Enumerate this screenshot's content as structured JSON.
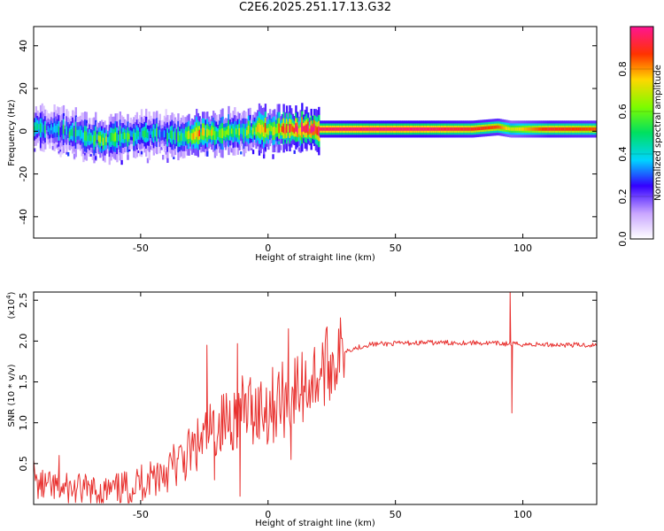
{
  "title": "C2E6.2025.251.17.13.G32",
  "chart_data": [
    {
      "type": "heatmap",
      "name": "spectrogram",
      "xlabel": "Height of straight line (km)",
      "ylabel": "Frequency (Hz)",
      "xlim": [
        -92,
        129
      ],
      "ylim": [
        -50,
        49
      ],
      "xticks": [
        -50,
        0,
        50,
        100
      ],
      "yticks": [
        -40,
        -20,
        0,
        20,
        40
      ],
      "colorbar": {
        "label": "Normalized spectral amplitude",
        "range": [
          0.0,
          1.0
        ],
        "ticks": [
          0.0,
          0.2,
          0.4,
          0.6,
          0.8
        ],
        "tick_labels": [
          "0.0",
          "0.2",
          "0.4",
          "0.6",
          "0.8"
        ]
      },
      "ridge_center_hz": {
        "x": [
          -92,
          -80,
          -70,
          -65,
          -55,
          -45,
          -35,
          -28,
          -20,
          -10,
          0,
          10,
          20,
          40,
          60,
          80,
          90,
          95,
          110,
          129
        ],
        "y": [
          2,
          0,
          -3,
          -4,
          -2,
          -1,
          -3,
          -1,
          -1,
          0,
          1,
          1,
          1,
          1,
          1,
          1,
          2,
          1,
          1,
          1
        ]
      },
      "ridge_peak_amplitude": {
        "x": [
          -92,
          -80,
          -70,
          -65,
          -55,
          -45,
          -35,
          -28,
          -20,
          -10,
          0,
          10,
          20,
          40,
          60,
          80,
          90,
          95,
          110,
          129
        ],
        "y": [
          0.35,
          0.4,
          0.45,
          0.55,
          0.45,
          0.4,
          0.45,
          0.75,
          0.55,
          0.55,
          0.75,
          0.9,
          0.95,
          0.97,
          0.97,
          0.9,
          0.85,
          0.7,
          0.9,
          0.85
        ]
      }
    },
    {
      "type": "line",
      "name": "snr",
      "xlabel": "Height of straight line (km)",
      "ylabel": "SNR (10 * v/v)",
      "y_scale_label": "(x10",
      "y_scale_exponent": "4",
      "y_scale_suffix": ")",
      "xlim": [
        -92,
        129
      ],
      "ylim": [
        0,
        2.6
      ],
      "xticks": [
        -50,
        0,
        50,
        100
      ],
      "yticks": [
        0.5,
        1.0,
        1.5,
        2.0,
        2.5
      ],
      "ytick_labels": [
        "0.5",
        "1.0",
        "1.5",
        "2.0",
        "2.5"
      ],
      "color": "#e8312f",
      "trend": {
        "x": [
          -92,
          -85,
          -75,
          -65,
          -55,
          -45,
          -35,
          -28,
          -20,
          -10,
          0,
          10,
          20,
          25,
          30,
          40,
          60,
          80,
          100,
          129
        ],
        "y": [
          0.25,
          0.2,
          0.18,
          0.15,
          0.2,
          0.35,
          0.5,
          0.7,
          0.95,
          1.15,
          1.2,
          1.35,
          1.6,
          1.75,
          1.88,
          1.96,
          1.98,
          1.98,
          1.96,
          1.95
        ]
      },
      "spikes": {
        "x": [
          -92,
          -82,
          -24,
          -21,
          -12,
          -11,
          8,
          9,
          95,
          95.7
        ],
        "y": [
          0.55,
          0.6,
          1.95,
          0.3,
          1.97,
          0.1,
          2.15,
          0.55,
          2.6,
          1.12
        ]
      }
    }
  ]
}
